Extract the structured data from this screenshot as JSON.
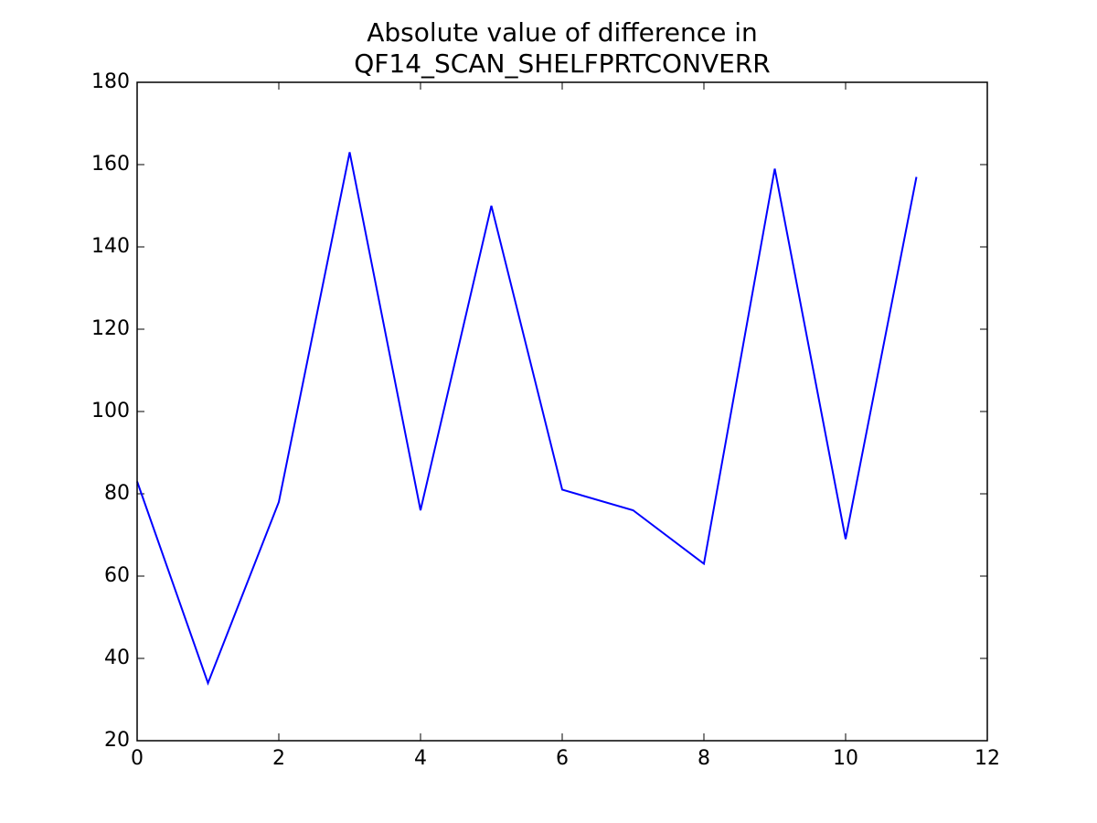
{
  "chart_data": {
    "type": "line",
    "title": [
      "Absolute value of difference in",
      "QF14_SCAN_SHELFPRTCONVERR"
    ],
    "x": [
      0,
      1,
      2,
      3,
      4,
      5,
      6,
      7,
      8,
      9,
      10,
      11
    ],
    "series": [
      {
        "color": "#0000ff",
        "values": [
          83,
          34,
          78,
          163,
          76,
          150,
          81,
          76,
          63,
          159,
          69,
          157
        ]
      }
    ],
    "xlim": [
      0,
      12
    ],
    "xticks": [
      0,
      2,
      4,
      6,
      8,
      10,
      12
    ],
    "ylim": [
      20,
      180
    ],
    "yticks": [
      20,
      40,
      60,
      80,
      100,
      120,
      140,
      160,
      180
    ],
    "grid": false
  }
}
